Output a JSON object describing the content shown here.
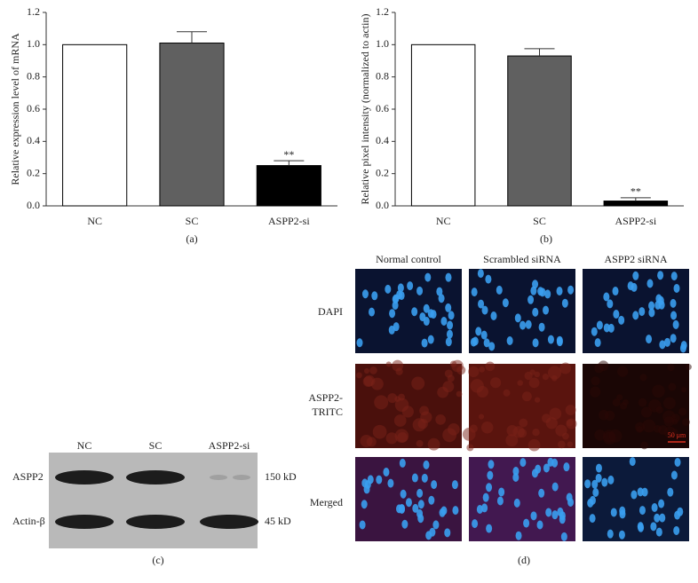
{
  "chart_data": [
    {
      "type": "bar",
      "label": "(a)",
      "y_label": "Relative expression level of mRNA",
      "categories": [
        "NC",
        "SC",
        "ASPP2-si"
      ],
      "values": [
        1.0,
        1.01,
        0.25
      ],
      "errors": [
        null,
        0.07,
        0.03
      ],
      "significance": [
        null,
        null,
        "**"
      ],
      "colors": [
        "#ffffff",
        "#606060",
        "#000000"
      ],
      "ylim": [
        0,
        1.2
      ],
      "yticks": [
        {
          "value": 0,
          "label": "0.0"
        },
        0.2,
        0.4,
        0.6,
        0.8,
        {
          "value": 1,
          "label": "1.0"
        },
        1.2
      ]
    },
    {
      "type": "bar",
      "label": "(b)",
      "y_label": "Relative pixel intensity (normalized to actin)",
      "categories": [
        "NC",
        "SC",
        "ASPP2-si"
      ],
      "values": [
        1.0,
        0.93,
        0.03
      ],
      "errors": [
        null,
        0.045,
        0.02
      ],
      "significance": [
        null,
        null,
        "**"
      ],
      "colors": [
        "#ffffff",
        "#606060",
        "#000000"
      ],
      "ylim": [
        0,
        1.2
      ],
      "yticks": [
        {
          "value": 0,
          "label": "0.0"
        },
        0.2,
        0.4,
        0.6,
        0.8,
        {
          "value": 1,
          "label": "1.0"
        },
        1.2
      ]
    }
  ],
  "panel_c": {
    "label": "(c)",
    "lanes": [
      "NC",
      "SC",
      "ASPP2-si"
    ],
    "bands": [
      {
        "name": "ASPP2",
        "size": "150 kD"
      },
      {
        "name": "Actin-β",
        "size": "45 kD"
      }
    ]
  },
  "panel_d": {
    "label": "(d)",
    "columns": [
      "Normal control",
      "Scrambled siRNA",
      "ASPP2 siRNA"
    ],
    "rows": [
      [
        "DAPI"
      ],
      [
        "ASPP2-",
        "TRITC"
      ],
      [
        "Merged"
      ]
    ],
    "scale_bar": "50 μm"
  }
}
